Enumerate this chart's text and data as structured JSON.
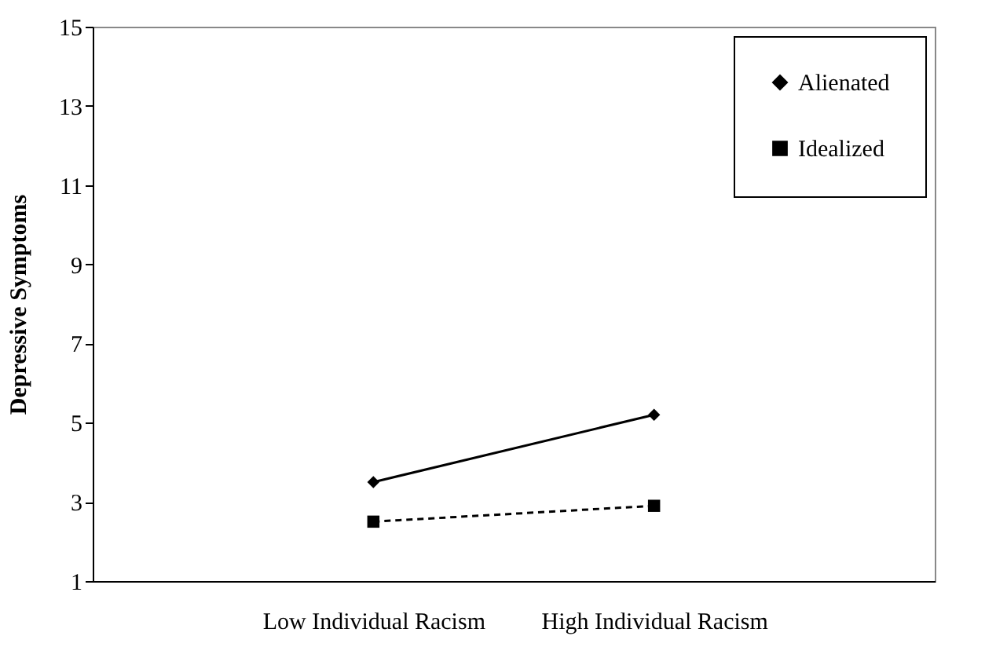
{
  "chart_data": {
    "type": "line",
    "ylabel": "Depressive Symptoms",
    "categories": [
      "Low Individual Racism",
      "High Individual Racism"
    ],
    "series": [
      {
        "name": "Alienated",
        "color": "#000000",
        "values": [
          3.5,
          5.2
        ],
        "marker": "diamond",
        "line_style": "solid"
      },
      {
        "name": "Idealized",
        "color": "#000000",
        "values": [
          2.5,
          2.9
        ],
        "marker": "square",
        "line_style": "dashed"
      }
    ],
    "ylim": [
      1,
      15
    ],
    "yticks": [
      1,
      3,
      5,
      7,
      9,
      11,
      13,
      15
    ],
    "grid": false,
    "legend": "top right"
  }
}
